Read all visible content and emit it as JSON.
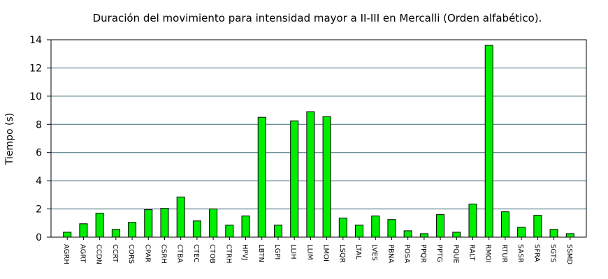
{
  "chart_data": {
    "type": "bar",
    "title": "Duración del movimiento para intensidad mayor a II-III en Mercalli (Orden alfabético).",
    "xlabel": "",
    "ylabel": "Tiempo (s)",
    "ylim": [
      0,
      14
    ],
    "yticks": [
      "0",
      "2",
      "4",
      "6",
      "8",
      "10",
      "12",
      "14"
    ],
    "grid": true,
    "colors": {
      "bar": "#00ee00",
      "grid": "#3d6a78",
      "axis": "#000000"
    },
    "categories": [
      "AGRH",
      "AGRT",
      "CCDN",
      "CCRT",
      "CORS",
      "CPAR",
      "CSRH",
      "CTBA",
      "CTEC",
      "CTOB",
      "CTRH",
      "HPVJ",
      "LBTN",
      "LGPI",
      "LLIH",
      "LLIM",
      "LMOI",
      "LSQR",
      "LTAL",
      "LVES",
      "PBNA",
      "POSA",
      "PPQR",
      "PPTG",
      "PQUE",
      "RALT",
      "RMOI",
      "RTUR",
      "SASR",
      "SFRA",
      "SGTS",
      "SSMD"
    ],
    "values": [
      0.35,
      0.95,
      1.7,
      0.55,
      1.05,
      1.95,
      2.05,
      2.85,
      1.15,
      2.0,
      0.85,
      1.5,
      8.5,
      0.85,
      8.25,
      8.9,
      8.55,
      1.35,
      0.85,
      1.5,
      1.25,
      0.45,
      0.25,
      1.6,
      0.35,
      2.35,
      13.6,
      1.8,
      0.7,
      1.55,
      0.55,
      0.25
    ]
  }
}
